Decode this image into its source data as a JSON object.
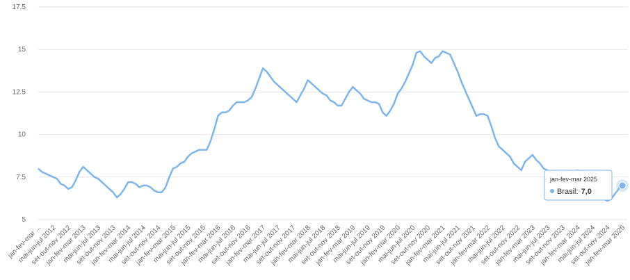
{
  "chart_data": {
    "type": "line",
    "categories": [
      "jan-fev-mar ...",
      null,
      null,
      null,
      "mai-jun-jul 2012",
      null,
      null,
      null,
      "set-out-nov 2012",
      null,
      null,
      null,
      "jan-fev-mar 2013",
      null,
      null,
      null,
      "mai-jun-jul 2013",
      null,
      null,
      null,
      "set-out-nov 2013",
      null,
      null,
      null,
      "jan-fev-mar 2014",
      null,
      null,
      null,
      "mai-jun-jul 2014",
      null,
      null,
      null,
      "set-out-nov 2014",
      null,
      null,
      null,
      "jan-fev-mar 2015",
      null,
      null,
      null,
      "mai-jun-jul 2015",
      null,
      null,
      null,
      "set-out-nov 2015",
      null,
      null,
      null,
      "jan-fev-mar 2016",
      null,
      null,
      null,
      "mai-jun-jul 2016",
      null,
      null,
      null,
      "set-out-nov 2016",
      null,
      null,
      null,
      "jan-fev-mar 2017",
      null,
      null,
      null,
      "mai-jun-jul 2017",
      null,
      null,
      null,
      "set-out-nov 2017",
      null,
      null,
      null,
      "jan-fev-mar 2018",
      null,
      null,
      null,
      "mai-jun-jul 2018",
      null,
      null,
      null,
      "set-out-nov 2018",
      null,
      null,
      null,
      "jan-fev-mar 2019",
      null,
      null,
      null,
      "mai-jun-jul 2019",
      null,
      null,
      null,
      "set-out-nov 2019",
      null,
      null,
      null,
      "jan-fev-mar 2020",
      null,
      null,
      null,
      "mai-jun-jul 2020",
      null,
      null,
      null,
      "set-out-nov 2020",
      null,
      null,
      null,
      "jan-fev-mar 2021",
      null,
      null,
      null,
      "mai-jun-jul 2021",
      null,
      null,
      null,
      "set-out-nov 2021",
      null,
      null,
      null,
      "jan-fev-mar 2022",
      null,
      null,
      null,
      "mai-jun-jul 2022",
      null,
      null,
      null,
      "set-out-nov 2022",
      null,
      null,
      null,
      "jan-fev-mar 2023",
      null,
      null,
      null,
      "mai-jun-jul 2023",
      null,
      null,
      null,
      "set-out-nov 2023",
      null,
      null,
      null,
      "jan-fev-mar 2024",
      null,
      null,
      null,
      "mai-jun-jul 2024",
      null,
      null,
      null,
      "set-out-nov 2024",
      null,
      null,
      null,
      "jan-fev-mar 2025"
    ],
    "series": [
      {
        "name": "Brasil",
        "color": "#7cb5ec",
        "values": [
          8.0,
          7.8,
          7.7,
          7.6,
          7.5,
          7.4,
          7.1,
          7.0,
          6.8,
          6.9,
          7.3,
          7.8,
          8.1,
          7.9,
          7.7,
          7.5,
          7.4,
          7.2,
          7.0,
          6.8,
          6.6,
          6.3,
          6.5,
          6.8,
          7.2,
          7.2,
          7.1,
          6.9,
          7.0,
          7.0,
          6.9,
          6.7,
          6.6,
          6.6,
          6.9,
          7.5,
          8.0,
          8.1,
          8.3,
          8.4,
          8.7,
          8.9,
          9.0,
          9.1,
          9.1,
          9.1,
          9.6,
          10.3,
          11.1,
          11.3,
          11.3,
          11.4,
          11.7,
          11.9,
          11.9,
          11.9,
          12.0,
          12.2,
          12.7,
          13.3,
          13.9,
          13.7,
          13.4,
          13.1,
          12.9,
          12.7,
          12.5,
          12.3,
          12.1,
          11.9,
          12.3,
          12.7,
          13.2,
          13.0,
          12.8,
          12.6,
          12.4,
          12.3,
          12.0,
          11.9,
          11.7,
          11.7,
          12.1,
          12.5,
          12.8,
          12.6,
          12.4,
          12.1,
          12.0,
          11.9,
          11.9,
          11.8,
          11.3,
          11.1,
          11.4,
          11.8,
          12.4,
          12.7,
          13.1,
          13.6,
          14.1,
          14.8,
          14.9,
          14.6,
          14.4,
          14.2,
          14.5,
          14.6,
          14.9,
          14.8,
          14.7,
          14.2,
          13.7,
          13.1,
          12.6,
          12.1,
          11.6,
          11.1,
          11.2,
          11.2,
          11.1,
          10.5,
          9.8,
          9.3,
          9.1,
          8.9,
          8.7,
          8.3,
          8.1,
          7.9,
          8.4,
          8.6,
          8.8,
          8.5,
          8.3,
          8.0,
          7.9,
          7.8,
          7.7,
          7.6,
          7.5,
          7.4,
          7.6,
          7.8,
          7.9,
          7.5,
          7.1,
          6.9,
          6.8,
          6.6,
          6.4,
          6.2,
          6.1,
          6.2,
          6.5,
          6.8,
          7.0
        ]
      }
    ],
    "ylim": [
      5,
      17.5
    ],
    "yticks": [
      5,
      7.5,
      10,
      12.5,
      15,
      17.5
    ],
    "grid": true,
    "tooltip": {
      "index": 156,
      "series_label": "Brasil:",
      "value_label": "7,0"
    }
  }
}
